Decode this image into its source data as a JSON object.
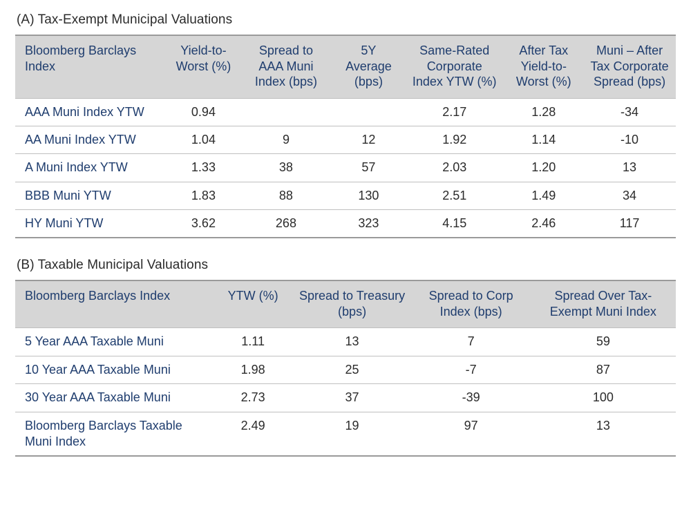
{
  "colors": {
    "header_bg": "#d6d6d6",
    "header_text": "#1f3d6e",
    "row_label_text": "#1f3d6e",
    "cell_text": "#2b2b2b",
    "border": "#bfbfbf",
    "outer_border": "#9a9a9a",
    "background": "#ffffff"
  },
  "typography": {
    "font_family": "Segoe UI / Myriad Pro style sans-serif",
    "title_fontsize_pt": 14,
    "header_fontsize_pt": 13,
    "cell_fontsize_pt": 13
  },
  "tableA": {
    "title": "(A) Tax-Exempt Municipal Valuations",
    "columns": [
      "Bloomberg Barclays Index",
      "Yield-to-Worst (%)",
      "Spread to AAA Muni Index (bps)",
      "5Y Average (bps)",
      "Same-Rated Corporate Index YTW (%)",
      "After Tax Yield-to-Worst (%)",
      "Muni – After Tax Corporate Spread (bps)"
    ],
    "col_widths_pct": [
      23,
      11,
      14,
      11,
      15,
      12,
      14
    ],
    "rows": [
      {
        "label": "AAA Muni Index YTW",
        "c1": "0.94",
        "c2": "",
        "c3": "",
        "c4": "2.17",
        "c5": "1.28",
        "c6": "-34"
      },
      {
        "label": "AA Muni Index YTW",
        "c1": "1.04",
        "c2": "9",
        "c3": "12",
        "c4": "1.92",
        "c5": "1.14",
        "c6": "-10"
      },
      {
        "label": "A Muni Index YTW",
        "c1": "1.33",
        "c2": "38",
        "c3": "57",
        "c4": "2.03",
        "c5": "1.20",
        "c6": "13"
      },
      {
        "label": "BBB Muni YTW",
        "c1": "1.83",
        "c2": "88",
        "c3": "130",
        "c4": "2.51",
        "c5": "1.49",
        "c6": "34"
      },
      {
        "label": "HY Muni YTW",
        "c1": "3.62",
        "c2": "268",
        "c3": "323",
        "c4": "4.15",
        "c5": "2.46",
        "c6": "117"
      }
    ]
  },
  "tableB": {
    "title": "(B) Taxable Municipal Valuations",
    "columns": [
      "Bloomberg Barclays Index",
      "YTW (%)",
      "Spread to Treasury (bps)",
      "Spread to Corp Index (bps)",
      "Spread Over Tax-Exempt Muni Index"
    ],
    "col_widths_pct": [
      30,
      12,
      18,
      18,
      22
    ],
    "rows": [
      {
        "label": "5 Year AAA Taxable Muni",
        "c1": "1.11",
        "c2": "13",
        "c3": "7",
        "c4": "59"
      },
      {
        "label": "10 Year AAA Taxable Muni",
        "c1": "1.98",
        "c2": "25",
        "c3": "-7",
        "c4": "87"
      },
      {
        "label": "30 Year AAA Taxable Muni",
        "c1": "2.73",
        "c2": "37",
        "c3": "-39",
        "c4": "100"
      },
      {
        "label": "Bloomberg Barclays Taxable Muni Index",
        "c1": "2.49",
        "c2": "19",
        "c3": "97",
        "c4": "13"
      }
    ]
  }
}
